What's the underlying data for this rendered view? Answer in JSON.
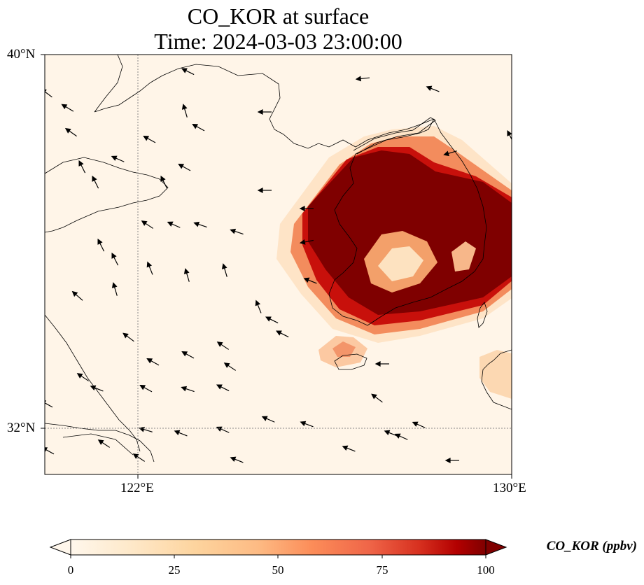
{
  "title": {
    "line1": "CO_KOR at surface",
    "line2": "Time: 2024-03-03 23:00:00"
  },
  "map": {
    "lon_range_deg": [
      120,
      130
    ],
    "lat_range_deg": [
      31,
      40
    ],
    "gridline_lon": 122,
    "gridline_lat": 32,
    "background_color": "#fff5e8",
    "high_color": "#7f0000",
    "ticks": {
      "lat": [
        "40°N",
        "32°N"
      ],
      "lon": [
        "122°E",
        "130°E"
      ]
    }
  },
  "colorbar": {
    "label": "CO_KOR (ppbv)",
    "ticks": [
      "0",
      "25",
      "50",
      "75",
      "100"
    ],
    "range": [
      0,
      100
    ],
    "colormap": "OrRd",
    "extend": "both"
  }
}
